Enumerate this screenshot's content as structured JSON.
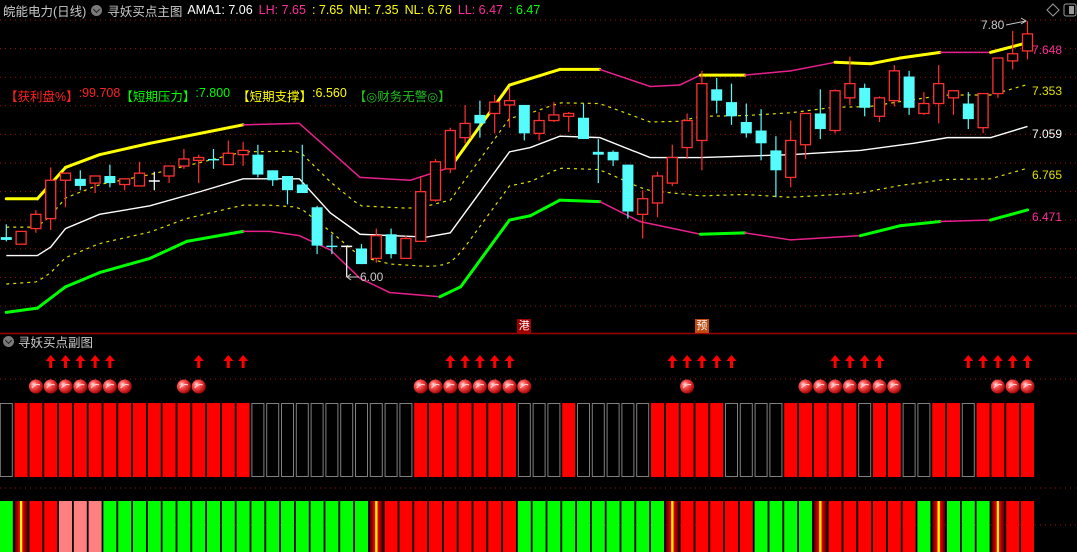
{
  "header": {
    "stock_title": "皖能电力(日线)",
    "indicator_title": "寻妖买点主图",
    "items": [
      {
        "text": "AMA1: 7.06",
        "color": "#ffffff"
      },
      {
        "text": "LH: 7.65",
        "color": "#ff2d9a"
      },
      {
        "text": ": 7.65",
        "color": "#ffff00"
      },
      {
        "text": "NH: 7.35",
        "color": "#ffff00"
      },
      {
        "text": "NL: 6.76",
        "color": "#ffff00"
      },
      {
        "text": "LL: 6.47",
        "color": "#ff2d9a"
      },
      {
        "text": ": 6.47",
        "color": "#00ff00"
      }
    ]
  },
  "annotations": [
    {
      "label": "【获利盘%】",
      "value": ":99.708",
      "color": "#ff2020",
      "value_color": "#ff2020"
    },
    {
      "label": "【短期压力】",
      "value": ":7.800",
      "color": "#00ff00",
      "value_color": "#00ff00"
    },
    {
      "label": "  【短期支撑】",
      "value": ":6.560",
      "color": "#ffff00",
      "value_color": "#ffff00"
    },
    {
      "label": "  【◎财务无警◎】",
      "value": "",
      "color": "#20c020",
      "value_color": "#20c020"
    }
  ],
  "markers": [
    {
      "text": "港",
      "bar": 35,
      "color": "#a00000"
    },
    {
      "text": "预",
      "bar": 47,
      "color": "#c04a10"
    }
  ],
  "sub_title": "寻妖买点副图",
  "chart_data": {
    "type": "candlestick",
    "candles_ohlc": [
      [
        6.28,
        6.37,
        6.25,
        6.26
      ],
      [
        6.23,
        6.32,
        6.23,
        6.32
      ],
      [
        6.34,
        6.47,
        6.31,
        6.44
      ],
      [
        6.41,
        6.77,
        6.33,
        6.68
      ],
      [
        6.68,
        6.73,
        6.49,
        6.73
      ],
      [
        6.69,
        6.75,
        6.61,
        6.64
      ],
      [
        6.66,
        6.71,
        6.59,
        6.71
      ],
      [
        6.71,
        6.79,
        6.63,
        6.66
      ],
      [
        6.65,
        6.69,
        6.61,
        6.69
      ],
      [
        6.64,
        6.81,
        6.64,
        6.73
      ],
      [
        6.68,
        6.74,
        6.61,
        6.68
      ],
      [
        6.71,
        6.78,
        6.66,
        6.78
      ],
      [
        6.78,
        6.9,
        6.76,
        6.83
      ],
      [
        6.82,
        6.86,
        6.66,
        6.84
      ],
      [
        6.83,
        6.9,
        6.76,
        6.82
      ],
      [
        6.79,
        6.96,
        6.79,
        6.87
      ],
      [
        6.86,
        6.95,
        6.78,
        6.89
      ],
      [
        6.86,
        6.93,
        6.7,
        6.72
      ],
      [
        6.75,
        6.75,
        6.64,
        6.68
      ],
      [
        6.71,
        6.71,
        6.51,
        6.61
      ],
      [
        6.65,
        6.93,
        6.59,
        6.59
      ],
      [
        6.49,
        6.5,
        6.16,
        6.22
      ],
      [
        6.22,
        6.3,
        6.16,
        6.21
      ],
      [
        6.22,
        6.22,
        6.0,
        6.22
      ],
      [
        6.2,
        6.23,
        6.09,
        6.09
      ],
      [
        6.13,
        6.34,
        6.1,
        6.29
      ],
      [
        6.3,
        6.34,
        6.13,
        6.16
      ],
      [
        6.13,
        6.29,
        6.13,
        6.27
      ],
      [
        6.25,
        6.71,
        6.25,
        6.6
      ],
      [
        6.54,
        6.83,
        6.53,
        6.81
      ],
      [
        6.76,
        7.05,
        6.73,
        7.03
      ],
      [
        6.98,
        7.21,
        6.94,
        7.08
      ],
      [
        7.14,
        7.24,
        6.98,
        7.08
      ],
      [
        7.15,
        7.28,
        7.01,
        7.23
      ],
      [
        7.21,
        7.33,
        7.05,
        7.24
      ],
      [
        7.21,
        7.21,
        6.96,
        7.01
      ],
      [
        7.01,
        7.16,
        6.96,
        7.1
      ],
      [
        7.1,
        7.23,
        7.09,
        7.14
      ],
      [
        7.13,
        7.16,
        7.02,
        7.15
      ],
      [
        7.12,
        7.22,
        6.97,
        6.97
      ],
      [
        6.88,
        6.97,
        6.66,
        6.86
      ],
      [
        6.88,
        6.89,
        6.78,
        6.82
      ],
      [
        6.79,
        6.79,
        6.41,
        6.46
      ],
      [
        6.44,
        6.61,
        6.27,
        6.55
      ],
      [
        6.52,
        6.74,
        6.42,
        6.71
      ],
      [
        6.66,
        6.93,
        6.64,
        6.84
      ],
      [
        6.91,
        7.15,
        6.83,
        7.1
      ],
      [
        6.96,
        7.45,
        6.75,
        7.36
      ],
      [
        7.32,
        7.4,
        7.15,
        7.24
      ],
      [
        7.23,
        7.36,
        7.07,
        7.13
      ],
      [
        7.09,
        7.22,
        6.98,
        7.01
      ],
      [
        7.03,
        7.18,
        6.82,
        6.94
      ],
      [
        6.89,
        6.99,
        6.56,
        6.75
      ],
      [
        6.7,
        7.1,
        6.63,
        6.96
      ],
      [
        6.93,
        7.15,
        6.83,
        7.15
      ],
      [
        7.15,
        7.32,
        6.97,
        7.04
      ],
      [
        7.03,
        7.32,
        7.01,
        7.31
      ],
      [
        7.26,
        7.55,
        7.21,
        7.36
      ],
      [
        7.33,
        7.36,
        7.13,
        7.19
      ],
      [
        7.13,
        7.27,
        7.09,
        7.26
      ],
      [
        7.24,
        7.49,
        7.2,
        7.45
      ],
      [
        7.41,
        7.45,
        7.14,
        7.19
      ],
      [
        7.15,
        7.3,
        7.14,
        7.22
      ],
      [
        7.22,
        7.49,
        7.08,
        7.36
      ],
      [
        7.26,
        7.31,
        7.14,
        7.31
      ],
      [
        7.22,
        7.3,
        7.04,
        7.11
      ],
      [
        7.05,
        7.29,
        7.01,
        7.29
      ],
      [
        7.29,
        7.54,
        7.26,
        7.54
      ],
      [
        7.52,
        7.73,
        7.46,
        7.57
      ],
      [
        7.59,
        7.8,
        7.53,
        7.71
      ]
    ],
    "colors": {
      "up": "#ff3030",
      "down": "#54fcfc",
      "flat": "#ffffff",
      "band_up": "#ffff00",
      "band_low_up": "#00ff00",
      "band_down": "#e8208c",
      "mid": "#ffffff",
      "dash": "#e0e000",
      "grid": "#a01010"
    },
    "upper_band": {
      "points": [
        [
          0,
          6.55
        ],
        [
          2.1,
          6.55
        ],
        [
          4,
          6.77
        ],
        [
          6.3,
          6.86
        ],
        [
          9.7,
          6.94
        ],
        [
          13.1,
          7.01
        ],
        [
          16,
          7.07
        ],
        [
          19.8,
          7.08
        ],
        [
          23.9,
          6.7
        ],
        [
          27.3,
          6.68
        ],
        [
          30,
          6.77
        ],
        [
          34,
          7.35
        ],
        [
          37.4,
          7.46
        ],
        [
          40.1,
          7.46
        ],
        [
          43.5,
          7.34
        ],
        [
          45.5,
          7.35
        ],
        [
          46.9,
          7.42
        ],
        [
          49.9,
          7.42
        ],
        [
          53,
          7.45
        ],
        [
          56,
          7.51
        ],
        [
          58.4,
          7.5
        ],
        [
          60.4,
          7.54
        ],
        [
          63.1,
          7.58
        ],
        [
          66.5,
          7.58
        ],
        [
          69,
          7.648
        ]
      ],
      "segment_colors": [
        "Y",
        "Y",
        "Y",
        "Y",
        "Y",
        "Y",
        "M",
        "M",
        "M",
        "M",
        "Y",
        "Y",
        "Y",
        "M",
        "M",
        "M",
        "Y",
        "M",
        "M",
        "Y",
        "Y",
        "Y",
        "M",
        "Y"
      ],
      "last_label": "7.648"
    },
    "middle_line": {
      "points": [
        [
          0,
          6.15
        ],
        [
          2.1,
          6.15
        ],
        [
          3,
          6.21
        ],
        [
          4,
          6.34
        ],
        [
          6.3,
          6.44
        ],
        [
          9.7,
          6.5
        ],
        [
          13.1,
          6.6
        ],
        [
          16,
          6.69
        ],
        [
          19.8,
          6.69
        ],
        [
          21.9,
          6.45
        ],
        [
          23.9,
          6.3
        ],
        [
          28.4,
          6.28
        ],
        [
          30,
          6.31
        ],
        [
          34,
          6.88
        ],
        [
          35.4,
          6.91
        ],
        [
          37.4,
          6.99
        ],
        [
          40.1,
          6.98
        ],
        [
          43.5,
          6.84
        ],
        [
          46.9,
          6.84
        ],
        [
          53,
          6.86
        ],
        [
          57.7,
          6.89
        ],
        [
          61.3,
          6.94
        ],
        [
          63.6,
          6.98
        ],
        [
          66.5,
          6.98
        ],
        [
          69,
          7.059
        ]
      ],
      "last_label": "7.059"
    },
    "lower_band": {
      "points": [
        [
          0,
          5.75
        ],
        [
          2.1,
          5.78
        ],
        [
          4,
          5.93
        ],
        [
          6.3,
          6.03
        ],
        [
          9.7,
          6.13
        ],
        [
          12.2,
          6.25
        ],
        [
          16,
          6.32
        ],
        [
          17.8,
          6.32
        ],
        [
          19.8,
          6.29
        ],
        [
          21.9,
          6.19
        ],
        [
          23.9,
          5.99
        ],
        [
          25.9,
          5.89
        ],
        [
          29.3,
          5.86
        ],
        [
          30.7,
          5.93
        ],
        [
          34,
          6.4
        ],
        [
          35.4,
          6.43
        ],
        [
          37.4,
          6.54
        ],
        [
          40.1,
          6.53
        ],
        [
          42.8,
          6.39
        ],
        [
          46.9,
          6.3
        ],
        [
          49.9,
          6.31
        ],
        [
          53,
          6.26
        ],
        [
          57.7,
          6.29
        ],
        [
          60.4,
          6.36
        ],
        [
          63.1,
          6.39
        ],
        [
          66.5,
          6.4
        ],
        [
          69,
          6.471
        ]
      ],
      "segment_colors": [
        "G",
        "G",
        "G",
        "G",
        "G",
        "G",
        "M",
        "M",
        "M",
        "M",
        "M",
        "M",
        "G",
        "G",
        "G",
        "G",
        "G",
        "M",
        "M",
        "G",
        "M",
        "M",
        "G",
        "G",
        "M",
        "G"
      ],
      "last_label": "6.471"
    },
    "upper_dashed_label": "7.353",
    "lower_dashed_label": "6.765",
    "high_label": {
      "bar": 69,
      "text": "7.80"
    },
    "low_label": {
      "bar": 23,
      "text": "6.00"
    },
    "sub_chart": {
      "up_arrow_bars": [
        3,
        4,
        5,
        6,
        7,
        13,
        15,
        16,
        30,
        31,
        32,
        33,
        34,
        45,
        46,
        47,
        48,
        49,
        56,
        57,
        58,
        59,
        65,
        66,
        67,
        68,
        69
      ],
      "ball_bars": [
        2,
        3,
        4,
        5,
        6,
        7,
        8,
        12,
        13,
        28,
        29,
        30,
        31,
        32,
        33,
        34,
        35,
        46,
        54,
        55,
        56,
        57,
        58,
        59,
        60,
        67,
        68,
        69
      ],
      "top_row": "NRRRRRRRRRRRRRRRRNNNNNNNNNNNRRRRRRRNNNRNNNNNRRRRRNNNNRRRRRNRRNNRRNRRRR",
      "bottom_row": "GSRRPPPGGGGGGGGGGGGGGGGGGSRRRRRRRRRGGGGGGGGGGSRRRRRGGGGSRRRRRRGSGGGSRR",
      "colors": {
        "R": "#ff0000",
        "N": "#808080",
        "G": "#00ff00",
        "P": "#ff8080",
        "arrow": "#ff0000"
      }
    }
  }
}
